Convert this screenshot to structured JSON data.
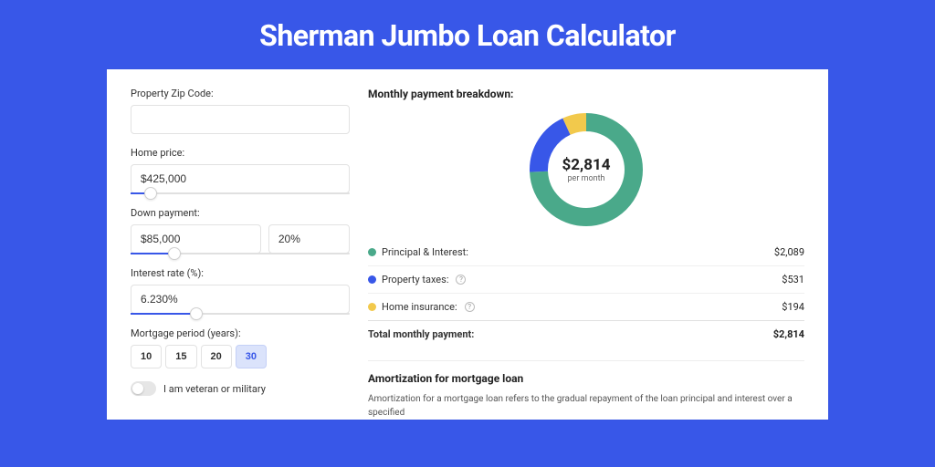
{
  "page": {
    "title": "Sherman Jumbo Loan Calculator",
    "background_color": "#3857e8",
    "card_background": "#ffffff",
    "title_color": "#ffffff",
    "title_fontsize": 32
  },
  "inputs": {
    "zip": {
      "label": "Property Zip Code:",
      "value": ""
    },
    "home_price": {
      "label": "Home price:",
      "value": "$425,000",
      "slider_pct": 9
    },
    "down_payment": {
      "label": "Down payment:",
      "amount": "$85,000",
      "percent": "20%",
      "slider_pct": 20
    },
    "interest_rate": {
      "label": "Interest rate (%):",
      "value": "6.230%",
      "slider_pct": 30
    },
    "mortgage_period": {
      "label": "Mortgage period (years):",
      "options": [
        "10",
        "15",
        "20",
        "30"
      ],
      "selected": "30"
    },
    "veteran": {
      "label": "I am veteran or military",
      "checked": false
    }
  },
  "results": {
    "heading": "Monthly payment breakdown:",
    "total_amount": "$2,814",
    "total_sub": "per month",
    "donut": {
      "slices": [
        {
          "key": "principal_interest",
          "value": 2089,
          "color": "#4aa98a"
        },
        {
          "key": "property_taxes",
          "value": 531,
          "color": "#3857e8"
        },
        {
          "key": "home_insurance",
          "value": 194,
          "color": "#f2c94c"
        }
      ],
      "stroke_width": 20,
      "radius": 52
    },
    "rows": [
      {
        "swatch": "#4aa98a",
        "label": "Principal & Interest:",
        "value": "$2,089",
        "help": false
      },
      {
        "swatch": "#3857e8",
        "label": "Property taxes:",
        "value": "$531",
        "help": true
      },
      {
        "swatch": "#f2c94c",
        "label": "Home insurance:",
        "value": "$194",
        "help": true
      }
    ],
    "total_row": {
      "label": "Total monthly payment:",
      "value": "$2,814"
    }
  },
  "amortization": {
    "heading": "Amortization for mortgage loan",
    "text": "Amortization for a mortgage loan refers to the gradual repayment of the loan principal and interest over a specified"
  }
}
